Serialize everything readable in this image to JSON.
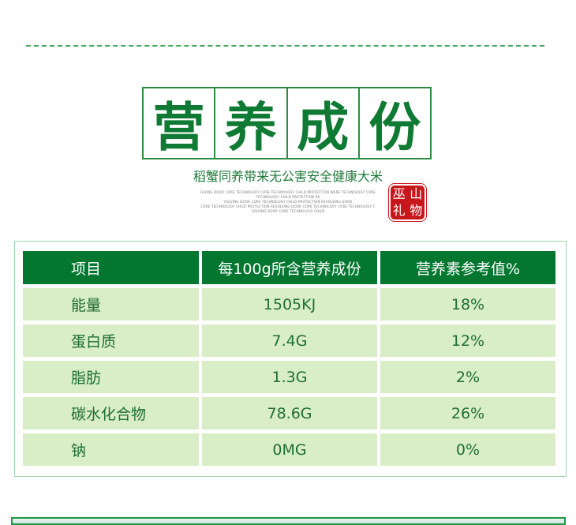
{
  "heading": {
    "chars": [
      "营",
      "养",
      "成",
      "份"
    ],
    "subtitle": "稻蟹同养带来无公害安全健康大米",
    "fine_print": [
      "GIVING DOOR CORE TECHNOLOGY CORE TECHNOLOGY CHILD PROTECTION WERE TECHNOLOGY CORE TECHNOLOGY CHILD PROTECTION RE",
      "VOLVING DOOR CORE TECHNOLOGY CHILD PROTECTION REVOLVING DOOR",
      "CORE TECHNOLOGY CHILD PROTECTION REVOLVING DOOR CORE TECHNOLOGY CORE TECHNOLOGY C",
      "VOLVING DOOR CORE TECHNOLOGY CHILD"
    ],
    "seal": [
      "山",
      "物",
      "巫",
      "礼"
    ]
  },
  "table": {
    "headers": [
      "项目",
      "每100g所含营养成份",
      "营养素参考值%"
    ],
    "rows": [
      [
        "能量",
        "1505KJ",
        "18%"
      ],
      [
        "蛋白质",
        "7.4G",
        "12%"
      ],
      [
        "脂肪",
        "1.3G",
        "2%"
      ],
      [
        "碳水化合物",
        "78.6G",
        "26%"
      ],
      [
        "钠",
        "0MG",
        "0%"
      ]
    ]
  },
  "colors": {
    "header_bg": "#03772f",
    "row_bg": "#d9eec6",
    "seal": "#c8161d"
  }
}
